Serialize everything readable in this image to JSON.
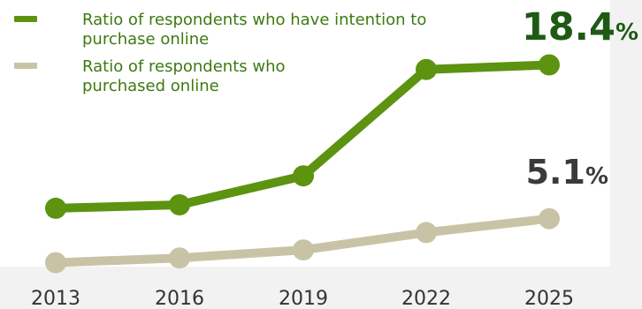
{
  "colors": {
    "intention": "#5c9310",
    "purchased": "#c9c3a6",
    "legend_text": "#3d7a10",
    "callout_intention": "#1e5a14",
    "callout_purchased": "#3a3a3a"
  },
  "chart_data": {
    "type": "line",
    "categories": [
      "2013",
      "2016",
      "2019",
      "2022",
      "2025"
    ],
    "series": [
      {
        "name": "Ratio of respondents who have intention to purchase online",
        "values": [
          6.0,
          6.3,
          8.8,
          18.0,
          18.4
        ],
        "end_label": "18.4",
        "end_unit": "%"
      },
      {
        "name": "Ratio of respondents who purchased online",
        "values": [
          1.3,
          1.7,
          2.4,
          3.9,
          5.1
        ],
        "end_label": "5.1",
        "end_unit": "%"
      }
    ],
    "ylim": [
      0,
      20
    ],
    "grid": false,
    "legend_position": "top-left",
    "title": "",
    "xlabel": "",
    "ylabel": ""
  }
}
